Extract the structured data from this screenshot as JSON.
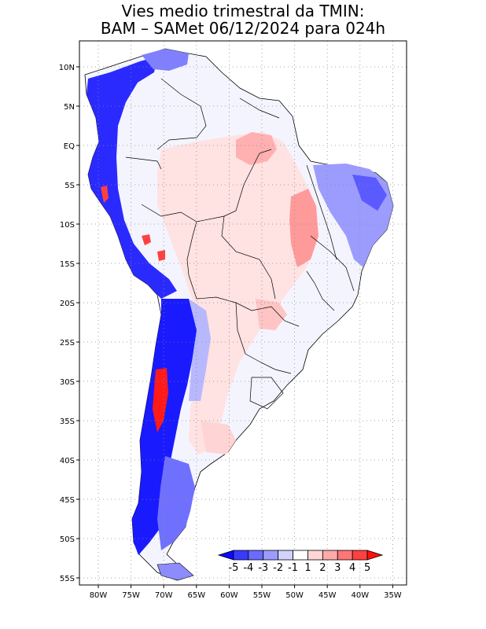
{
  "title": {
    "line1": "Vies medio trimestral da TMIN:",
    "line2": "BAM – SAMet 06/12/2024  para 024h"
  },
  "axes": {
    "lat_labels": [
      "10N",
      "5N",
      "EQ",
      "5S",
      "10S",
      "15S",
      "20S",
      "25S",
      "30S",
      "35S",
      "40S",
      "45S",
      "50S",
      "55S"
    ],
    "lon_labels": [
      "80W",
      "75W",
      "70W",
      "65W",
      "60W",
      "55W",
      "50W",
      "45W",
      "40W",
      "35W"
    ]
  },
  "colorbar": {
    "labels": [
      "-5",
      "-4",
      "-3",
      "-2",
      "-1",
      "1",
      "2",
      "3",
      "4",
      "5"
    ],
    "colors": [
      "#0a0aff",
      "#3a3aff",
      "#6b6bff",
      "#9c9cff",
      "#d2d2ff",
      "#ffffff",
      "#ffd6d6",
      "#ffaaaa",
      "#ff7676",
      "#ff4040",
      "#ff1010"
    ]
  },
  "colors": {
    "strong_blue": "#1a1aff",
    "mid_blue": "#6b6bff",
    "light_blue": "#c8c8ff",
    "light_red": "#ffd0d0",
    "mid_red": "#ff8c8c",
    "strong_red": "#ff2020"
  }
}
